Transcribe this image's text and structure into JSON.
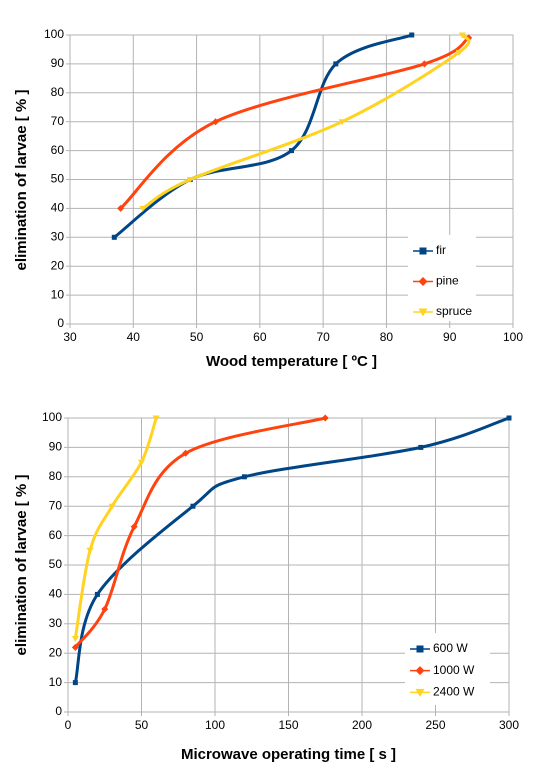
{
  "chart_data": [
    {
      "type": "line",
      "xlabel": "Wood  temperature [ ºC ]",
      "ylabel": "elimination  of  larvae [ % ]",
      "xlim": [
        30,
        100
      ],
      "xticks": [
        30,
        40,
        50,
        60,
        70,
        80,
        90,
        100
      ],
      "ylim": [
        0,
        100
      ],
      "yticks": [
        0,
        10,
        20,
        30,
        40,
        50,
        60,
        70,
        80,
        90,
        100
      ],
      "grid": true,
      "legend": "lower right",
      "series": [
        {
          "name": "fir",
          "color": "#004586",
          "marker": "square",
          "x": [
            37,
            49,
            65,
            72,
            84
          ],
          "values": [
            30,
            50,
            60,
            90,
            100
          ]
        },
        {
          "name": "pine",
          "color": "#ff420e",
          "marker": "diamond",
          "x": [
            38,
            53,
            86,
            93
          ],
          "values": [
            40,
            70,
            90,
            99
          ]
        },
        {
          "name": "spruce",
          "color": "#ffd320",
          "marker": "triangle",
          "x": [
            41.5,
            49,
            73,
            91.5,
            92
          ],
          "values": [
            40,
            50,
            70,
            94,
            100
          ]
        }
      ]
    },
    {
      "type": "line",
      "xlabel": "Microwave  operating  time [ s ]",
      "ylabel": "elimination  of  larvae [ % ]",
      "xlim": [
        0,
        300
      ],
      "xticks": [
        0,
        50,
        100,
        150,
        200,
        250,
        300
      ],
      "ylim": [
        0,
        100
      ],
      "yticks": [
        0,
        10,
        20,
        30,
        40,
        50,
        60,
        70,
        80,
        90,
        100
      ],
      "grid": true,
      "legend": "lower right",
      "series": [
        {
          "name": " 600 W",
          "color": "#004586",
          "marker": "square",
          "x": [
            5,
            20,
            85,
            120,
            240,
            300
          ],
          "values": [
            10,
            40,
            70,
            80,
            90,
            100
          ]
        },
        {
          "name": "1000 W",
          "color": "#ff420e",
          "marker": "diamond",
          "x": [
            5,
            25,
            45,
            80,
            175
          ],
          "values": [
            22,
            35,
            63,
            88,
            100
          ]
        },
        {
          "name": "2400 W",
          "color": "#ffd320",
          "marker": "triangle",
          "x": [
            5,
            15,
            30,
            50,
            60
          ],
          "values": [
            25,
            55,
            70,
            85,
            100
          ]
        }
      ]
    }
  ]
}
